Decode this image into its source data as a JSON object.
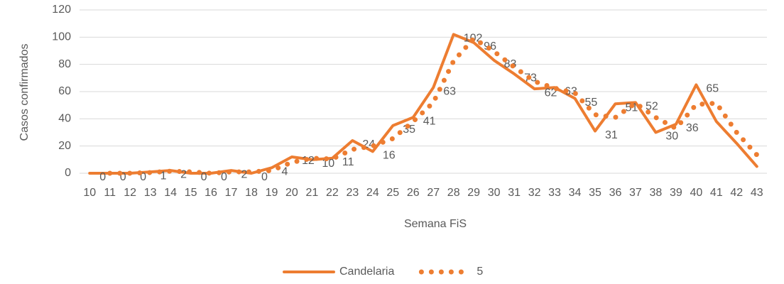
{
  "chart_data": {
    "type": "line",
    "x_label": "Semana FiS",
    "y_label": "Casos confirmados",
    "categories": [
      "10",
      "11",
      "12",
      "13",
      "14",
      "15",
      "16",
      "17",
      "18",
      "19",
      "20",
      "21",
      "22",
      "23",
      "24",
      "25",
      "26",
      "27",
      "28",
      "29",
      "30",
      "31",
      "32",
      "33",
      "34",
      "35",
      "36",
      "37",
      "38",
      "39",
      "40",
      "41",
      "42",
      "43"
    ],
    "series": [
      {
        "name": "Candelaria",
        "color": "#ed7d31",
        "style": "solid",
        "values": [
          0,
          0,
          0,
          1,
          2,
          0,
          0,
          2,
          0,
          4,
          12,
          10,
          11,
          24,
          16,
          35,
          41,
          63,
          102,
          96,
          83,
          73,
          62,
          63,
          55,
          31,
          51,
          52,
          30,
          36,
          65,
          38,
          22,
          5
        ],
        "value_labels": [
          "0",
          "0",
          "0",
          "1",
          "2",
          "0",
          "0",
          "2",
          "0",
          "4",
          "12",
          "10",
          "11",
          "24",
          "16",
          "35",
          "41",
          "63",
          "102",
          "96",
          "83",
          "73",
          "62",
          "63",
          "55",
          "31",
          "51",
          "52",
          "30",
          "36",
          "65",
          null,
          null,
          null
        ]
      },
      {
        "name": "5",
        "color": "#ed7d31",
        "style": "dotted",
        "values": [
          null,
          0,
          0,
          0.5,
          1.5,
          1,
          0,
          1,
          1,
          2,
          8,
          11,
          10.5,
          17.5,
          20,
          25.5,
          38,
          52,
          82.5,
          99,
          89.5,
          78,
          67.5,
          62.5,
          59,
          43,
          41,
          51.5,
          41,
          33,
          50.5,
          51.5,
          30,
          13.5
        ]
      }
    ],
    "ylim": [
      0,
      120
    ],
    "yticks": [
      0,
      20,
      40,
      60,
      80,
      100,
      120
    ],
    "grid": true,
    "legend": "bottom"
  }
}
